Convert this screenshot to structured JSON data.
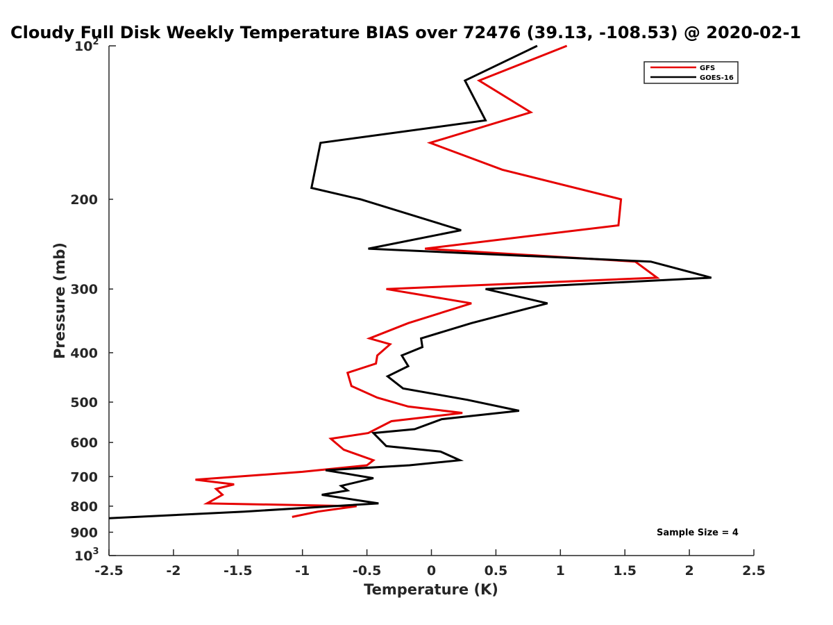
{
  "chart_data": {
    "type": "line",
    "title": "Cloudy Full Disk Weekly Temperature BIAS over 72476 (39.13, -108.53) @ 2020-02-1",
    "xlabel": "Temperature (K)",
    "ylabel": "Pressure (mb)",
    "xlim": [
      -2.5,
      2.5
    ],
    "ylim": [
      100,
      1000
    ],
    "y_scale": "log",
    "y_reversed": true,
    "grid": false,
    "legend_position": "top-right",
    "annotation": "Sample Size = 4",
    "x_ticks": [
      "-2.5",
      "-2",
      "-1.5",
      "-1",
      "-0.5",
      "0",
      "0.5",
      "1",
      "1.5",
      "2",
      "2.5"
    ],
    "y_ticks": [
      {
        "value": 100,
        "base": "10",
        "exp": "2"
      },
      {
        "value": 200,
        "label": "200"
      },
      {
        "value": 300,
        "label": "300"
      },
      {
        "value": 400,
        "label": "400"
      },
      {
        "value": 500,
        "label": "500"
      },
      {
        "value": 600,
        "label": "600"
      },
      {
        "value": 700,
        "label": "700"
      },
      {
        "value": 800,
        "label": "800"
      },
      {
        "value": 900,
        "label": "900"
      },
      {
        "value": 1000,
        "base": "10",
        "exp": "3"
      }
    ],
    "series": [
      {
        "name": "GFS",
        "color": "#e60000",
        "points": [
          [
            1.05,
            100
          ],
          [
            0.37,
            117
          ],
          [
            0.77,
            135
          ],
          [
            -0.01,
            155
          ],
          [
            0.55,
            175
          ],
          [
            1.47,
            200
          ],
          [
            1.45,
            225
          ],
          [
            -0.05,
            250
          ],
          [
            1.58,
            265
          ],
          [
            1.75,
            285
          ],
          [
            -0.35,
            300
          ],
          [
            0.31,
            320
          ],
          [
            -0.18,
            350
          ],
          [
            -0.48,
            375
          ],
          [
            -0.32,
            385
          ],
          [
            -0.42,
            405
          ],
          [
            -0.43,
            420
          ],
          [
            -0.65,
            438
          ],
          [
            -0.62,
            465
          ],
          [
            -0.42,
            490
          ],
          [
            -0.18,
            510
          ],
          [
            0.24,
            525
          ],
          [
            -0.31,
            545
          ],
          [
            -0.49,
            575
          ],
          [
            -0.78,
            590
          ],
          [
            -0.68,
            620
          ],
          [
            -0.45,
            650
          ],
          [
            -0.5,
            665
          ],
          [
            -1.0,
            685
          ],
          [
            -1.83,
            710
          ],
          [
            -1.53,
            725
          ],
          [
            -1.67,
            740
          ],
          [
            -1.62,
            760
          ],
          [
            -1.74,
            790
          ],
          [
            -0.58,
            800
          ],
          [
            -0.88,
            820
          ],
          [
            -1.08,
            840
          ]
        ]
      },
      {
        "name": "GOES-16",
        "color": "#000000",
        "points": [
          [
            0.82,
            100
          ],
          [
            0.26,
            117
          ],
          [
            0.42,
            140
          ],
          [
            -0.86,
            155
          ],
          [
            -0.93,
            190
          ],
          [
            -0.55,
            200
          ],
          [
            0.23,
            230
          ],
          [
            -0.49,
            250
          ],
          [
            1.7,
            265
          ],
          [
            2.17,
            285
          ],
          [
            0.42,
            300
          ],
          [
            0.9,
            320
          ],
          [
            0.31,
            350
          ],
          [
            -0.08,
            375
          ],
          [
            -0.07,
            390
          ],
          [
            -0.23,
            405
          ],
          [
            -0.18,
            425
          ],
          [
            -0.34,
            445
          ],
          [
            -0.22,
            470
          ],
          [
            0.28,
            495
          ],
          [
            0.68,
            520
          ],
          [
            0.08,
            540
          ],
          [
            -0.13,
            565
          ],
          [
            -0.45,
            575
          ],
          [
            -0.35,
            610
          ],
          [
            0.07,
            625
          ],
          [
            0.22,
            650
          ],
          [
            -0.17,
            665
          ],
          [
            -0.82,
            680
          ],
          [
            -0.45,
            705
          ],
          [
            -0.7,
            730
          ],
          [
            -0.65,
            745
          ],
          [
            -0.85,
            760
          ],
          [
            -0.41,
            790
          ],
          [
            -1.45,
            820
          ],
          [
            -2.52,
            845
          ]
        ]
      }
    ]
  }
}
